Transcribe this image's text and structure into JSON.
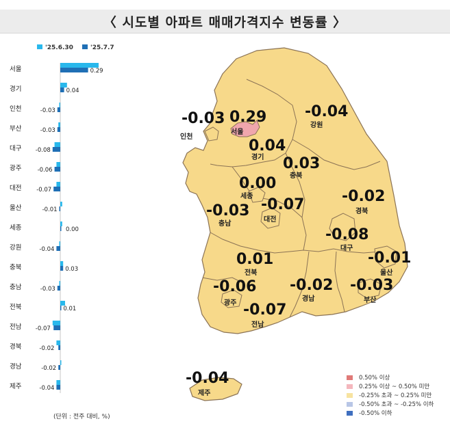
{
  "title": "〈 시도별 아파트 매매가격지수 변동률 〉",
  "unit_note": "(단위 : 전주 대비, %)",
  "colors": {
    "series1": "#29b8ec",
    "series2": "#1f6fb5",
    "map_fill": "#f7d98a",
    "map_border": "#8a7255",
    "seoul_fill": "#f0a6ad"
  },
  "chart_data": {
    "type": "bar",
    "orientation": "horizontal",
    "series": [
      {
        "name": "'25.6.30",
        "values": [
          0.4,
          0.07,
          -0.01,
          -0.02,
          -0.06,
          -0.04,
          -0.04,
          0.02,
          0.02,
          -0.01,
          0.03,
          -0.01,
          0.05,
          -0.08,
          -0.04,
          0.01,
          -0.04
        ]
      },
      {
        "name": "'25.7.7",
        "values": [
          0.29,
          0.04,
          -0.03,
          -0.03,
          -0.08,
          -0.06,
          -0.07,
          -0.01,
          0.0,
          -0.04,
          0.03,
          -0.03,
          0.01,
          -0.07,
          -0.02,
          -0.02,
          -0.04
        ]
      }
    ],
    "categories": [
      "서울",
      "경기",
      "인천",
      "부산",
      "대구",
      "광주",
      "대전",
      "울산",
      "세종",
      "강원",
      "충북",
      "충남",
      "전북",
      "전남",
      "경북",
      "경남",
      "제주"
    ],
    "data_labels": [
      "0.29",
      "0.04",
      "-0.03",
      "-0.03",
      "-0.08",
      "-0.06",
      "-0.07",
      "-0.01",
      "0.00",
      "-0.04",
      "0.03",
      "-0.03",
      "0.01",
      "-0.07",
      "-0.02",
      "-0.02",
      "-0.04"
    ],
    "legend_position": "top"
  },
  "map": {
    "regions": [
      {
        "name": "인천",
        "value": "-0.03",
        "color": "#f7d98a"
      },
      {
        "name": "서울",
        "value": "0.29",
        "color": "#f0a6ad"
      },
      {
        "name": "경기",
        "value": "0.04",
        "color": "#f7d98a"
      },
      {
        "name": "강원",
        "value": "-0.04",
        "color": "#f7d98a"
      },
      {
        "name": "충북",
        "value": "0.03",
        "color": "#f7d98a"
      },
      {
        "name": "세종",
        "value": "0.00",
        "color": "#f7d98a"
      },
      {
        "name": "충남",
        "value": "-0.03",
        "color": "#f7d98a"
      },
      {
        "name": "대전",
        "value": "-0.07",
        "color": "#f7d98a"
      },
      {
        "name": "경북",
        "value": "-0.02",
        "color": "#f7d98a"
      },
      {
        "name": "대구",
        "value": "-0.08",
        "color": "#f7d98a"
      },
      {
        "name": "울산",
        "value": "-0.01",
        "color": "#f7d98a"
      },
      {
        "name": "전북",
        "value": "0.01",
        "color": "#f7d98a"
      },
      {
        "name": "광주",
        "value": "-0.06",
        "color": "#f7d98a"
      },
      {
        "name": "경남",
        "value": "-0.02",
        "color": "#f7d98a"
      },
      {
        "name": "부산",
        "value": "-0.03",
        "color": "#f7d98a"
      },
      {
        "name": "전남",
        "value": "-0.07",
        "color": "#f7d98a"
      },
      {
        "name": "제주",
        "value": "-0.04",
        "color": "#f7d98a"
      }
    ],
    "legend": [
      {
        "label": "0.50% 이상",
        "color": "#e07a78"
      },
      {
        "label": "0.25% 이상 ~ 0.50% 미만",
        "color": "#f4b7bd"
      },
      {
        "label": "-0.25% 초과 ~ 0.25% 미만",
        "color": "#f7e3a0"
      },
      {
        "label": "-0.50% 초과 ~ -0.25% 이하",
        "color": "#b8c6e6"
      },
      {
        "label": "-0.50% 이하",
        "color": "#3f6fbf"
      }
    ]
  }
}
